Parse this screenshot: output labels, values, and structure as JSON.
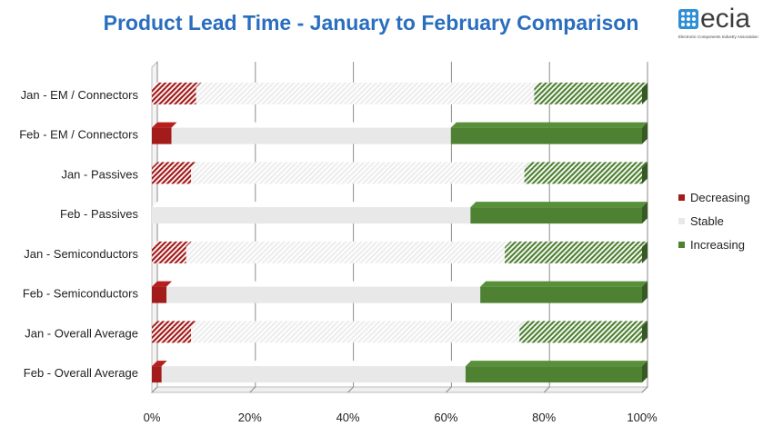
{
  "title": "Product Lead Time - January to February Comparison",
  "logo": {
    "word": "ecia",
    "subtitle": "Electronic Components Industry Association"
  },
  "colors": {
    "decreasing": "#a31b1b",
    "stable": "#e8e8e8",
    "increasing": "#4f8133",
    "title": "#2a6ebf"
  },
  "chart_data": {
    "type": "bar",
    "orientation": "horizontal",
    "stacked": "100%",
    "title": "Product Lead Time - January to February Comparison",
    "categories": [
      "Jan - EM / Connectors",
      "Feb - EM / Connectors",
      "Jan - Passives",
      "Feb - Passives",
      "Jan - Semiconductors",
      "Feb - Semiconductors",
      "Jan - Overall Average",
      "Feb - Overall Average"
    ],
    "patterned": [
      true,
      false,
      true,
      false,
      true,
      false,
      true,
      false
    ],
    "series": [
      {
        "name": "Decreasing",
        "values": [
          9,
          4,
          8,
          0,
          7,
          3,
          8,
          2
        ]
      },
      {
        "name": "Stable",
        "values": [
          69,
          57,
          68,
          65,
          65,
          64,
          67,
          62
        ]
      },
      {
        "name": "Increasing",
        "values": [
          22,
          39,
          24,
          35,
          28,
          33,
          25,
          36
        ]
      }
    ],
    "xlim": [
      0,
      100
    ],
    "xticks": [
      "0%",
      "20%",
      "40%",
      "60%",
      "80%",
      "100%"
    ],
    "grid": true,
    "legend": "right"
  }
}
